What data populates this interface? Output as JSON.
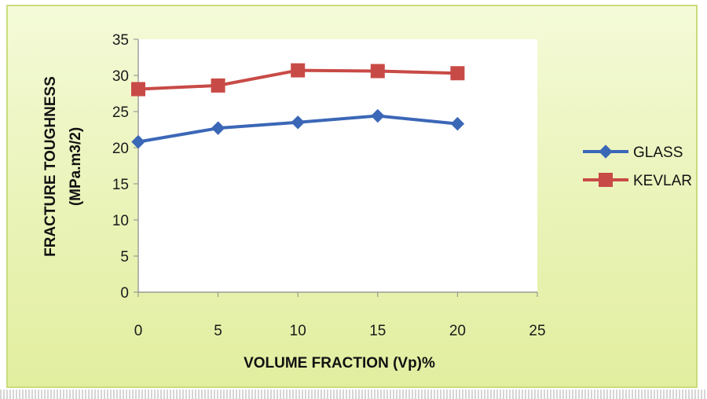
{
  "chart_data": {
    "type": "line",
    "title": "",
    "xlabel": "VOLUME FRACTION (Vp)%",
    "ylabel_lines": [
      "FRACTURE TOUGHNESS",
      "(MPa.m3/2)"
    ],
    "x": [
      0,
      5,
      10,
      15,
      20
    ],
    "xlim": [
      0,
      25
    ],
    "ylim": [
      0,
      35
    ],
    "x_ticks": [
      0,
      5,
      10,
      15,
      20,
      25
    ],
    "y_ticks": [
      0,
      5,
      10,
      15,
      20,
      25,
      30,
      35
    ],
    "grid": false,
    "legend_position": "right",
    "series": [
      {
        "name": "GLASS",
        "values": [
          20.8,
          22.7,
          23.5,
          24.4,
          23.3
        ],
        "color": "#3b67b7",
        "marker": "diamond"
      },
      {
        "name": "KEVLAR",
        "values": [
          28.1,
          28.6,
          30.7,
          30.6,
          30.3
        ],
        "color": "#c84a46",
        "marker": "square"
      }
    ]
  }
}
